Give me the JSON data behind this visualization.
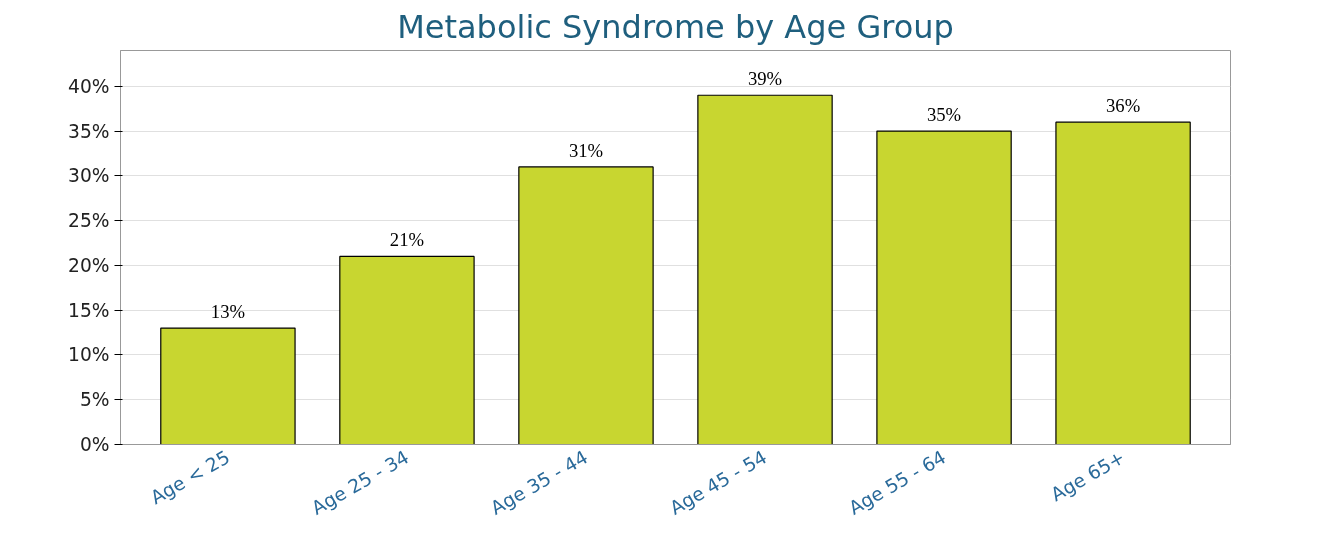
{
  "chart_data": {
    "type": "bar",
    "title": "Metabolic Syndrome by Age Group",
    "categories": [
      "Age < 25",
      "Age 25 - 34",
      "Age 35 - 44",
      "Age 45 - 54",
      "Age 55 - 64",
      "Age 65+"
    ],
    "values": [
      13,
      21,
      31,
      39,
      35,
      36
    ],
    "color": "#c8d630",
    "ylim": [
      0,
      44
    ],
    "yticks": [
      {
        "value": 0,
        "label": "0%"
      },
      {
        "value": 5,
        "label": "5%"
      },
      {
        "value": 10,
        "label": "10%"
      },
      {
        "value": 15,
        "label": "15%"
      },
      {
        "value": 20,
        "label": "20%"
      },
      {
        "value": 25,
        "label": "25%"
      },
      {
        "value": 30,
        "label": "30%"
      },
      {
        "value": 35,
        "label": "35%"
      },
      {
        "value": 40,
        "label": "40%"
      }
    ],
    "grid": "y",
    "data_labels": true,
    "value_labels": [
      "13%",
      "21%",
      "31%",
      "39%",
      "35%",
      "36%"
    ]
  }
}
